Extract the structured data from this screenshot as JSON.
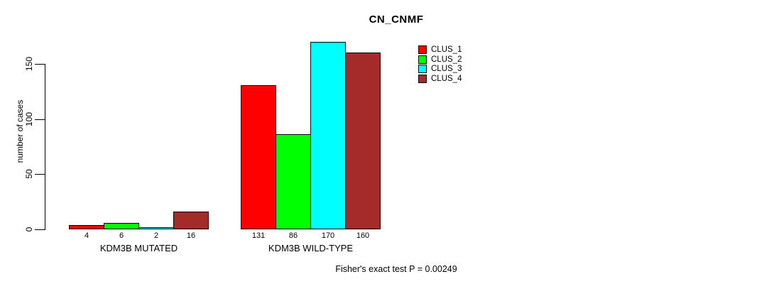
{
  "chart_data": {
    "type": "bar",
    "title": "CN_CNMF",
    "ylabel": "number of cases",
    "xlabel": "",
    "footer": "Fisher's exact test P = 0.00249",
    "categories": [
      "KDM3B MUTATED",
      "KDM3B WILD-TYPE"
    ],
    "series": [
      {
        "name": "CLUS_1",
        "color": "#FF0000",
        "values": [
          4,
          131
        ]
      },
      {
        "name": "CLUS_2",
        "color": "#00FF00",
        "values": [
          6,
          86
        ]
      },
      {
        "name": "CLUS_3",
        "color": "#00FFFF",
        "values": [
          2,
          170
        ]
      },
      {
        "name": "CLUS_4",
        "color": "#A52A2A",
        "values": [
          16,
          160
        ]
      }
    ],
    "y_ticks": [
      0,
      50,
      100,
      150
    ],
    "ylim": [
      0,
      175
    ],
    "grid": false,
    "legend_position": "top-right-inside",
    "bar_border_color": "#000000",
    "background_color": "#FFFFFF"
  }
}
